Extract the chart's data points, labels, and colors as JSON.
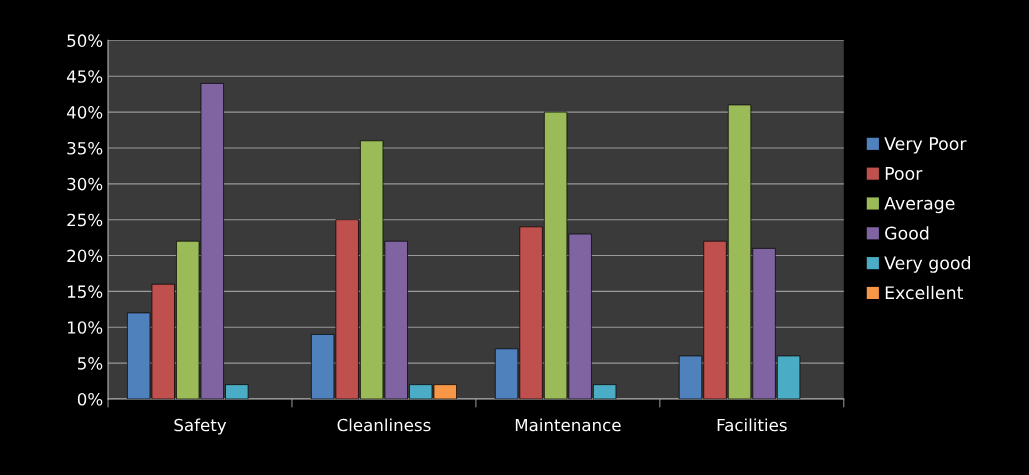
{
  "chart_data": {
    "type": "bar",
    "categories": [
      "Safety",
      "Cleanliness",
      "Maintenance",
      "Facilities"
    ],
    "series": [
      {
        "name": "Very Poor",
        "color": "#4f81bd",
        "values": [
          12,
          9,
          7,
          6
        ]
      },
      {
        "name": "Poor",
        "color": "#c0504d",
        "values": [
          16,
          25,
          24,
          22
        ]
      },
      {
        "name": "Average",
        "color": "#9bbb59",
        "values": [
          22,
          36,
          40,
          41
        ]
      },
      {
        "name": "Good",
        "color": "#8064a2",
        "values": [
          44,
          22,
          23,
          21
        ]
      },
      {
        "name": "Very good",
        "color": "#4bacc6",
        "values": [
          2,
          2,
          2,
          6
        ]
      },
      {
        "name": "Excellent",
        "color": "#f79646",
        "values": [
          null,
          2,
          null,
          null
        ]
      }
    ],
    "ylim": [
      0,
      50
    ],
    "yticks": [
      {
        "value": 0,
        "label": "0%"
      },
      {
        "value": 5,
        "label": "5%"
      },
      {
        "value": 10,
        "label": "10%"
      },
      {
        "value": 15,
        "label": "15%"
      },
      {
        "value": 20,
        "label": "20%"
      },
      {
        "value": 25,
        "label": "25%"
      },
      {
        "value": 30,
        "label": "30%"
      },
      {
        "value": 35,
        "label": "35%"
      },
      {
        "value": 40,
        "label": "40%"
      },
      {
        "value": 45,
        "label": "45%"
      },
      {
        "value": 50,
        "label": "50%"
      }
    ],
    "grid": "y",
    "legend": "right"
  }
}
